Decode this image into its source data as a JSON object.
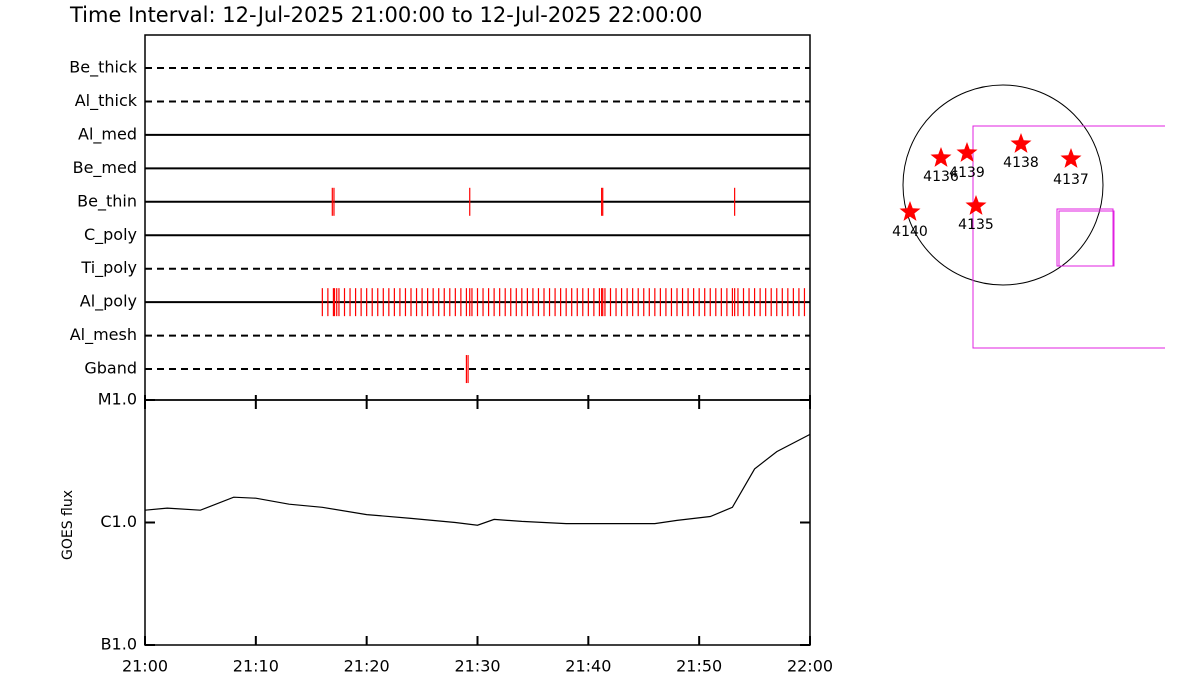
{
  "chart_data": [
    {
      "type": "event",
      "title": "Time Interval: 12-Jul-2025 21:00:00 to 12-Jul-2025 22:00:00",
      "categories": [
        "Be_thick",
        "Al_thick",
        "Al_med",
        "Be_med",
        "Be_thin",
        "C_poly",
        "Ti_poly",
        "Al_poly",
        "Al_mesh",
        "Gband"
      ],
      "line_styles": [
        "dashed",
        "dashed",
        "solid",
        "solid",
        "solid",
        "solid",
        "dashed",
        "solid",
        "dashed",
        "dashed"
      ],
      "color": "#ff0000",
      "xlim": [
        0,
        60
      ],
      "events": [
        [],
        [],
        [],
        [],
        [
          16.9,
          17.05,
          29.3,
          41.2,
          41.3,
          53.2
        ],
        [],
        [],
        [
          16.0,
          16.5,
          17.0,
          17.1,
          17.3,
          17.5,
          18.0,
          18.5,
          19.0,
          19.5,
          20.0,
          20.5,
          21.0,
          21.5,
          22.0,
          22.5,
          23.0,
          23.5,
          24.0,
          24.5,
          25.0,
          25.5,
          26.0,
          26.5,
          27.0,
          27.5,
          28.0,
          28.5,
          29.0,
          29.3,
          29.5,
          30.0,
          30.5,
          31.0,
          31.5,
          32.0,
          32.5,
          33.0,
          33.5,
          34.0,
          34.5,
          35.0,
          35.5,
          36.0,
          36.5,
          37.0,
          37.5,
          38.0,
          38.5,
          39.0,
          39.5,
          40.0,
          40.5,
          41.0,
          41.2,
          41.3,
          41.5,
          42.0,
          42.5,
          43.0,
          43.5,
          44.0,
          44.5,
          45.0,
          45.5,
          46.0,
          46.5,
          47.0,
          47.5,
          48.0,
          48.5,
          49.0,
          49.5,
          50.0,
          50.5,
          51.0,
          51.5,
          52.0,
          52.5,
          53.0,
          53.2,
          53.5,
          54.0,
          54.5,
          55.0,
          55.5,
          56.0,
          56.5,
          57.0,
          57.5,
          58.0,
          58.5,
          59.0,
          59.5
        ],
        [],
        [
          29.0,
          29.15
        ]
      ]
    },
    {
      "type": "line",
      "y_label": "GOES flux",
      "color": "#000000",
      "log_y": true,
      "x": [
        0,
        2,
        5,
        8,
        10,
        13,
        16,
        20,
        24,
        28,
        30,
        31.5,
        34,
        38,
        42,
        46,
        48,
        51,
        53,
        55,
        57,
        60
      ],
      "values": [
        1.26e-06,
        1.31e-06,
        1.26e-06,
        1.61e-06,
        1.58e-06,
        1.41e-06,
        1.33e-06,
        1.16e-06,
        1.08e-06,
        1e-06,
        9.5e-07,
        1.06e-06,
        1.02e-06,
        9.8e-07,
        9.8e-07,
        9.8e-07,
        1.04e-06,
        1.12e-06,
        1.33e-06,
        2.74e-06,
        3.79e-06,
        5.24e-06
      ],
      "xlim": [
        0,
        60
      ],
      "xticks": [
        {
          "value": 0,
          "label": "21:00"
        },
        {
          "value": 10,
          "label": "21:10"
        },
        {
          "value": 20,
          "label": "21:20"
        },
        {
          "value": 30,
          "label": "21:30"
        },
        {
          "value": 40,
          "label": "21:40"
        },
        {
          "value": 50,
          "label": "21:50"
        },
        {
          "value": 60,
          "label": "22:00"
        }
      ],
      "ylim": [
        1e-07,
        1e-05
      ],
      "yticks": [
        {
          "value": 1e-07,
          "label": "B1.0"
        },
        {
          "value": 1e-06,
          "label": "C1.0"
        },
        {
          "value": 1e-05,
          "label": "M1.0"
        }
      ]
    }
  ],
  "sun_map": {
    "regions": [
      "4136",
      "4139",
      "4138",
      "4137",
      "4140",
      "4135"
    ]
  }
}
